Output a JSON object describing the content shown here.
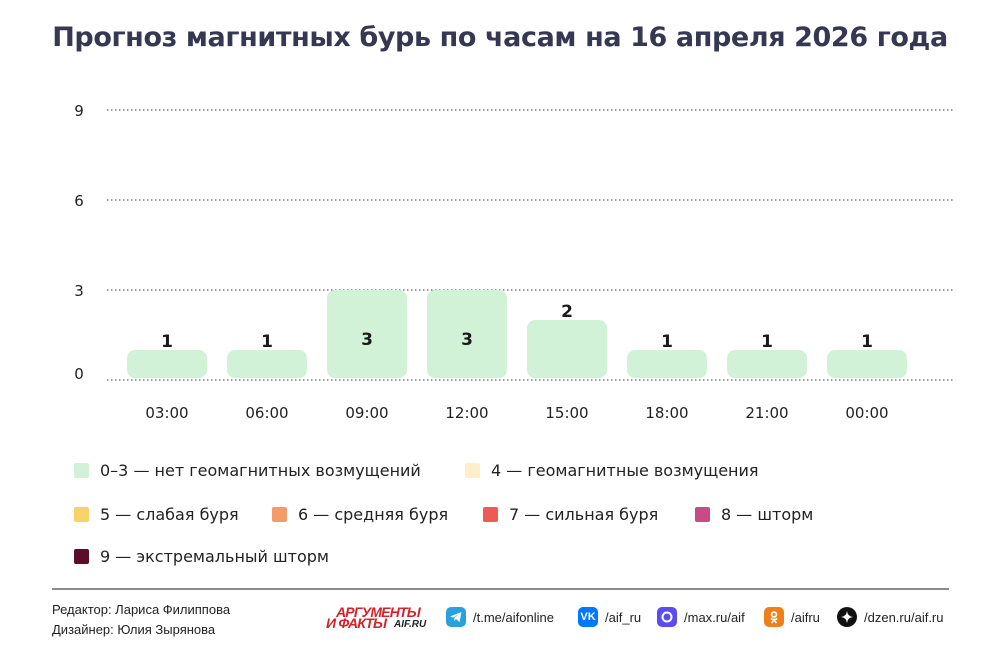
{
  "title": "Прогноз магнитных бурь по часам на 16 апреля 2026 года",
  "chart_data": {
    "type": "bar",
    "categories": [
      "03:00",
      "06:00",
      "09:00",
      "12:00",
      "15:00",
      "18:00",
      "21:00",
      "00:00"
    ],
    "values": [
      1,
      1,
      3,
      3,
      2,
      1,
      1,
      1
    ],
    "yticks": [
      0,
      3,
      6,
      9
    ],
    "ylim": [
      0,
      9
    ],
    "grid": true,
    "gridline_style": "dotted",
    "bar_color": "#d1f2d6",
    "legend_placement": "bottom"
  },
  "legend": [
    {
      "label": "0–3 — нет геомагнитных возмущений",
      "color": "#d1f2d6"
    },
    {
      "label": "4 — геомагнитные возмущения",
      "color": "#fdf0c8"
    },
    {
      "label": "5 — слабая буря",
      "color": "#f8d36a"
    },
    {
      "label": "6 — средняя буря",
      "color": "#f49b6a"
    },
    {
      "label": "7 — сильная буря",
      "color": "#ee5b55"
    },
    {
      "label": "8 — шторм",
      "color": "#c94a86"
    },
    {
      "label": "9 — экстремальный шторм",
      "color": "#5c0d2a"
    }
  ],
  "footer": {
    "editor": "Редактор: Лариса Филиппова",
    "designer": "Дизайнер: Юлия Зырянова",
    "logo_line1": "АРГУМЕНТЫ",
    "logo_line2": "И ФАКТЫ",
    "logo_site": "AIF.RU",
    "social": [
      {
        "icon": "telegram-icon",
        "text": "/t.me/aifonline",
        "color": "#2aa1da"
      },
      {
        "icon": "vk-icon",
        "text": "/aif_ru",
        "color": "#0077ff"
      },
      {
        "icon": "max-icon",
        "text": "/max.ru/aif",
        "color": "#5b4cf0"
      },
      {
        "icon": "odnoklassniki-icon",
        "text": "/aifru",
        "color": "#f07f1a"
      },
      {
        "icon": "dzen-icon",
        "text": "/dzen.ru/aif.ru",
        "color": "#111111"
      }
    ]
  }
}
